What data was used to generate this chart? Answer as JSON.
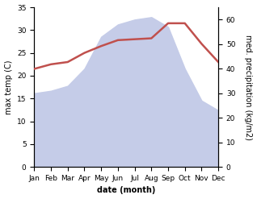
{
  "months": [
    "Jan",
    "Feb",
    "Mar",
    "Apr",
    "May",
    "Jun",
    "Jul",
    "Aug",
    "Sep",
    "Oct",
    "Nov",
    "Dec"
  ],
  "temperature": [
    21.5,
    22.5,
    23.0,
    25.0,
    26.5,
    27.8,
    28.0,
    28.2,
    31.5,
    31.5,
    27.0,
    23.0
  ],
  "precipitation": [
    30,
    31,
    33,
    40,
    53,
    58,
    60,
    61,
    57,
    40,
    27,
    23
  ],
  "temp_color": "#c0504d",
  "precip_fill_color": "#c5cce8",
  "temp_ylim": [
    0,
    35
  ],
  "precip_ylim": [
    0,
    65
  ],
  "temp_yticks": [
    0,
    5,
    10,
    15,
    20,
    25,
    30,
    35
  ],
  "precip_yticks": [
    0,
    10,
    20,
    30,
    40,
    50,
    60
  ],
  "xlabel": "date (month)",
  "ylabel_left": "max temp (C)",
  "ylabel_right": "med. precipitation (kg/m2)",
  "axis_fontsize": 7,
  "tick_fontsize": 6.5
}
